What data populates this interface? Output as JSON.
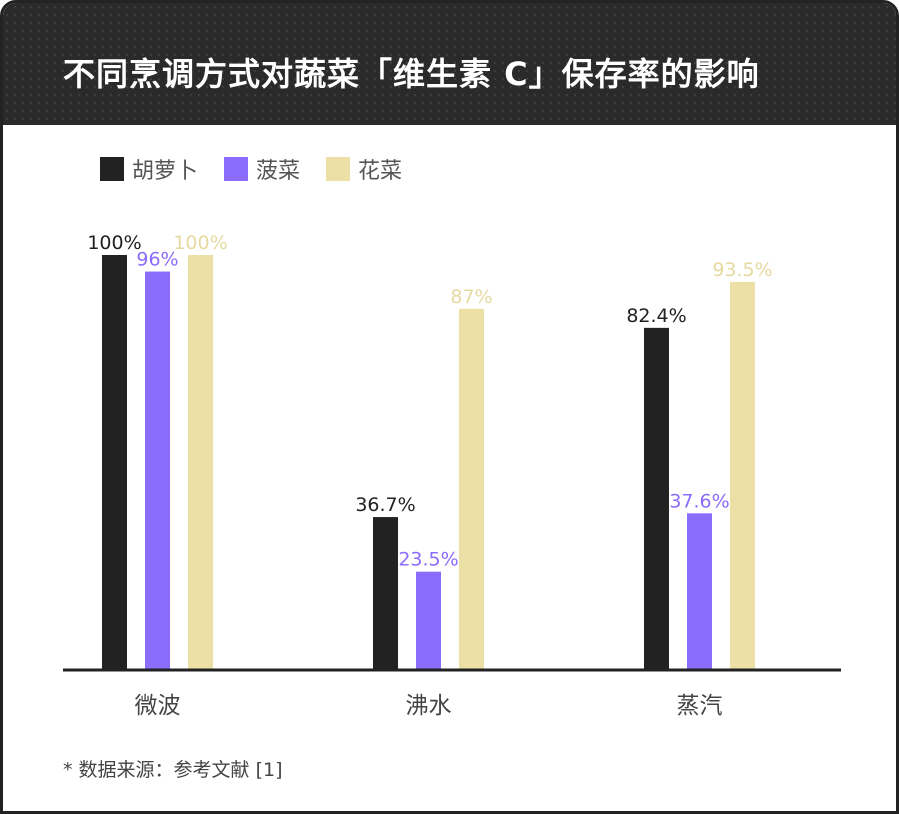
{
  "title": "不同烹调方式对蔬菜「维生素 C」保存率的影响",
  "note": "* 数据来源：参考文献 [1]",
  "colors": {
    "carrot": "#222222",
    "spinach": "#8b6cfb",
    "cauliflower": "#ece0a6"
  },
  "chart_data": {
    "type": "bar",
    "title": "不同烹调方式对蔬菜「维生素 C」保存率的影响",
    "categories": [
      "微波",
      "沸水",
      "蒸汽"
    ],
    "series": [
      {
        "name": "胡萝卜",
        "values": [
          100,
          36.7,
          82.4
        ],
        "labels": [
          "100%",
          "36.7%",
          "82.4%"
        ],
        "color": "#222222",
        "label_color": "#222222"
      },
      {
        "name": "菠菜",
        "values": [
          96,
          23.5,
          37.6
        ],
        "labels": [
          "96%",
          "23.5%",
          "37.6%"
        ],
        "color": "#8b6cfb",
        "label_color": "#8b6cfb"
      },
      {
        "name": "花菜",
        "values": [
          100,
          87,
          93.5
        ],
        "labels": [
          "100%",
          "87%",
          "93.5%"
        ],
        "color": "#ece0a6",
        "label_color": "#e6d9a0"
      }
    ],
    "xlabel": "",
    "ylabel": "",
    "ylim": [
      0,
      100
    ],
    "grid": false,
    "legend": "top-left"
  }
}
